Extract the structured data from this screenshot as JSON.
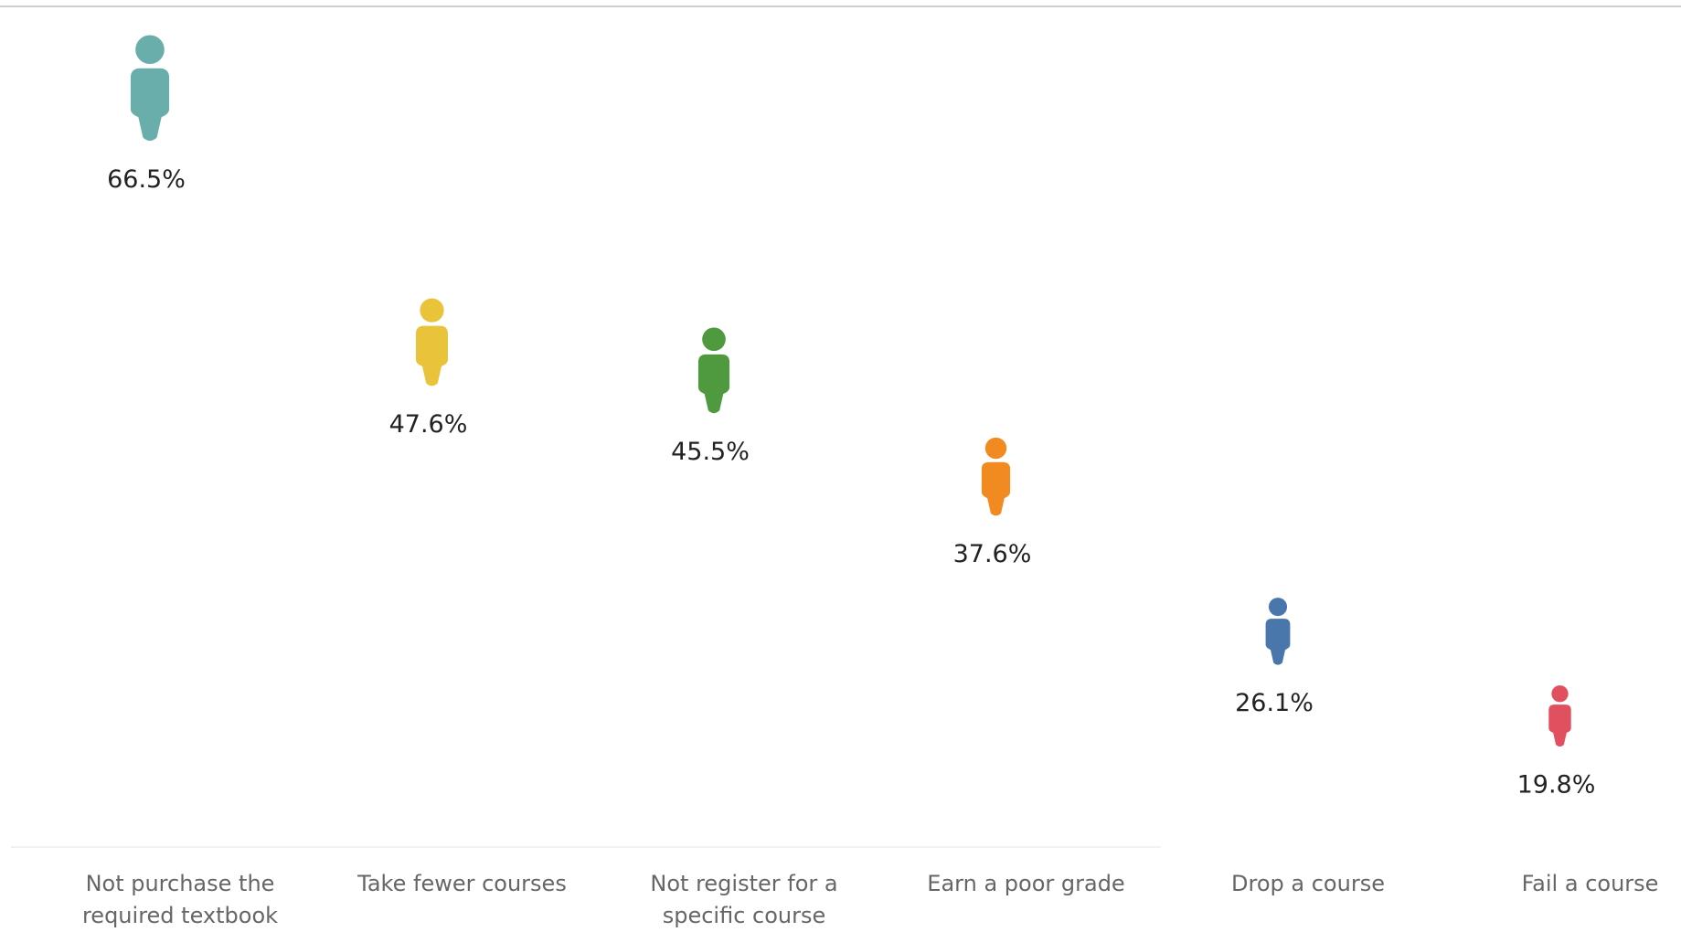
{
  "chart_data": {
    "type": "pictogram",
    "categories": [
      "Not purchase the required textbook",
      "Take fewer courses",
      "Not register for a specific course",
      "Earn a poor grade",
      "Drop a course",
      "Fail a course"
    ],
    "values": [
      66.5,
      47.6,
      45.5,
      37.6,
      26.1,
      19.8
    ],
    "value_labels": [
      "66.5%",
      "47.6%",
      "45.5%",
      "37.6%",
      "26.1%",
      "19.8%"
    ],
    "colors": [
      "#6aaeab",
      "#e9c43b",
      "#4f9a3f",
      "#f28a22",
      "#4a77ab",
      "#e0505e"
    ]
  }
}
